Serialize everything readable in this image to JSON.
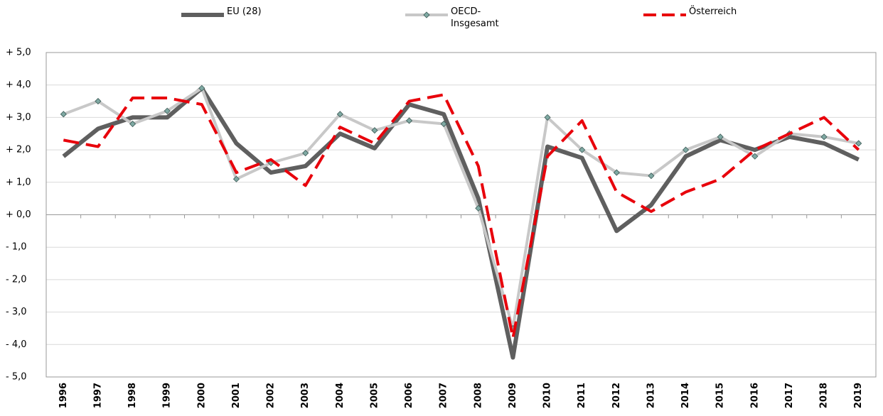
{
  "chart_data": {
    "type": "line",
    "categories": [
      "1996",
      "1997",
      "1998",
      "1999",
      "2000",
      "2001",
      "2002",
      "2003",
      "2004",
      "2005",
      "2006",
      "2007",
      "2008",
      "2009",
      "2010",
      "2011",
      "2012",
      "2013",
      "2014",
      "2015",
      "2016",
      "2017",
      "2018",
      "2019"
    ],
    "series": [
      {
        "name": "EU (28)",
        "color": "#5f5f5f",
        "values": [
          1.8,
          2.65,
          3.0,
          3.0,
          3.9,
          2.2,
          1.3,
          1.5,
          2.5,
          2.05,
          3.4,
          3.1,
          0.5,
          -4.4,
          2.1,
          1.75,
          -0.5,
          0.3,
          1.8,
          2.3,
          2.0,
          2.4,
          2.2,
          1.7
        ]
      },
      {
        "name": "OECD-\nInsgesamt",
        "color": "#c8c8c8",
        "marker_color": "#7fa9a3",
        "values": [
          3.1,
          3.5,
          2.8,
          3.2,
          3.9,
          1.1,
          1.6,
          1.9,
          3.1,
          2.6,
          2.9,
          2.8,
          0.2,
          -3.5,
          3.0,
          2.0,
          1.3,
          1.2,
          2.0,
          2.4,
          1.8,
          2.5,
          2.4,
          2.2
        ]
      },
      {
        "name": "Österreich",
        "color": "#e8000b",
        "dashed": true,
        "values": [
          2.3,
          2.1,
          3.6,
          3.6,
          3.4,
          1.3,
          1.7,
          0.9,
          2.7,
          2.2,
          3.5,
          3.7,
          1.5,
          -3.8,
          1.8,
          2.9,
          0.7,
          0.1,
          0.7,
          1.1,
          2.0,
          2.5,
          3.0,
          2.0
        ]
      }
    ],
    "ylim": [
      -5,
      5
    ],
    "yticks": [
      {
        "value": 5,
        "label": "+ 5,0"
      },
      {
        "value": 4,
        "label": "+ 4,0"
      },
      {
        "value": 3,
        "label": "+ 3,0"
      },
      {
        "value": 2,
        "label": "+ 2,0"
      },
      {
        "value": 1,
        "label": "+ 1,0"
      },
      {
        "value": 0,
        "label": "+ 0,0"
      },
      {
        "value": -1,
        "label": "- 1,0"
      },
      {
        "value": -2,
        "label": "- 2,0"
      },
      {
        "value": -3,
        "label": "- 3,0"
      },
      {
        "value": -4,
        "label": "- 4,0"
      },
      {
        "value": -5,
        "label": "- 5,0"
      }
    ],
    "grid": true,
    "legend": "top"
  }
}
